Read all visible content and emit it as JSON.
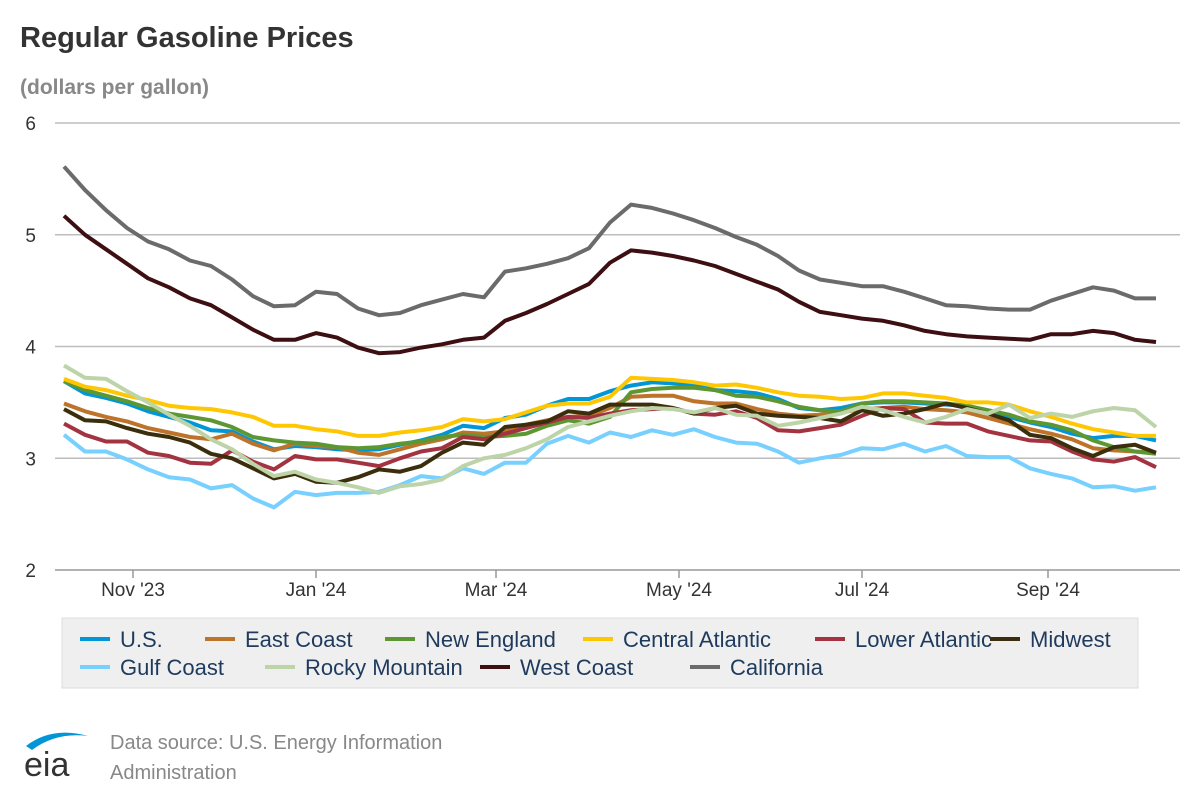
{
  "chart_data": {
    "type": "line",
    "title": "Regular Gasoline Prices",
    "subtitle": "(dollars per gallon)",
    "ylim": [
      2,
      6
    ],
    "yticks": [
      2,
      3,
      4,
      5,
      6
    ],
    "grid": true,
    "legend_position": "bottom",
    "xticks": [
      {
        "date": "2023-11-01",
        "label": "Nov '23"
      },
      {
        "date": "2024-01-01",
        "label": "Jan '24"
      },
      {
        "date": "2024-03-01",
        "label": "Mar '24"
      },
      {
        "date": "2024-05-01",
        "label": "May '24"
      },
      {
        "date": "2024-07-01",
        "label": "Jul '24"
      },
      {
        "date": "2024-09-01",
        "label": "Sep '24"
      }
    ],
    "x": [
      "2023-10-09",
      "2023-10-16",
      "2023-10-23",
      "2023-10-30",
      "2023-11-06",
      "2023-11-13",
      "2023-11-20",
      "2023-11-27",
      "2023-12-04",
      "2023-12-11",
      "2023-12-18",
      "2023-12-25",
      "2024-01-01",
      "2024-01-08",
      "2024-01-15",
      "2024-01-22",
      "2024-01-29",
      "2024-02-05",
      "2024-02-12",
      "2024-02-19",
      "2024-02-26",
      "2024-03-04",
      "2024-03-11",
      "2024-03-18",
      "2024-03-25",
      "2024-04-01",
      "2024-04-08",
      "2024-04-15",
      "2024-04-22",
      "2024-04-29",
      "2024-05-06",
      "2024-05-13",
      "2024-05-20",
      "2024-05-27",
      "2024-06-03",
      "2024-06-10",
      "2024-06-17",
      "2024-06-24",
      "2024-07-01",
      "2024-07-08",
      "2024-07-15",
      "2024-07-22",
      "2024-07-29",
      "2024-08-05",
      "2024-08-12",
      "2024-08-19",
      "2024-08-26",
      "2024-09-02",
      "2024-09-09",
      "2024-09-16",
      "2024-09-23",
      "2024-09-30",
      "2024-10-07"
    ],
    "series": [
      {
        "name": "U.S.",
        "color": "#0096d7",
        "values": [
          3.69,
          3.58,
          3.54,
          3.49,
          3.42,
          3.37,
          3.32,
          3.25,
          3.24,
          3.15,
          3.08,
          3.11,
          3.1,
          3.08,
          3.07,
          3.08,
          3.12,
          3.16,
          3.21,
          3.29,
          3.27,
          3.36,
          3.39,
          3.47,
          3.53,
          3.53,
          3.6,
          3.65,
          3.68,
          3.67,
          3.65,
          3.61,
          3.6,
          3.58,
          3.53,
          3.45,
          3.43,
          3.45,
          3.49,
          3.5,
          3.5,
          3.49,
          3.48,
          3.47,
          3.4,
          3.37,
          3.32,
          3.28,
          3.22,
          3.18,
          3.2,
          3.2,
          3.16
        ]
      },
      {
        "name": "East Coast",
        "color": "#bd732a",
        "values": [
          3.49,
          3.42,
          3.37,
          3.33,
          3.27,
          3.23,
          3.19,
          3.17,
          3.22,
          3.13,
          3.07,
          3.13,
          3.11,
          3.1,
          3.05,
          3.03,
          3.08,
          3.13,
          3.17,
          3.23,
          3.22,
          3.24,
          3.3,
          3.34,
          3.37,
          3.38,
          3.45,
          3.55,
          3.56,
          3.56,
          3.51,
          3.49,
          3.49,
          3.44,
          3.4,
          3.38,
          3.39,
          3.41,
          3.44,
          3.45,
          3.46,
          3.44,
          3.43,
          3.41,
          3.36,
          3.31,
          3.26,
          3.22,
          3.17,
          3.09,
          3.07,
          3.06,
          3.05
        ]
      },
      {
        "name": "New England",
        "color": "#5d9732",
        "values": [
          3.69,
          3.61,
          3.56,
          3.51,
          3.45,
          3.4,
          3.37,
          3.34,
          3.28,
          3.19,
          3.16,
          3.14,
          3.13,
          3.1,
          3.09,
          3.1,
          3.13,
          3.15,
          3.19,
          3.21,
          3.19,
          3.2,
          3.22,
          3.29,
          3.34,
          3.31,
          3.37,
          3.59,
          3.62,
          3.63,
          3.63,
          3.61,
          3.56,
          3.55,
          3.51,
          3.46,
          3.43,
          3.42,
          3.49,
          3.51,
          3.51,
          3.5,
          3.49,
          3.47,
          3.43,
          3.39,
          3.33,
          3.3,
          3.25,
          3.16,
          3.1,
          3.06,
          3.04
        ]
      },
      {
        "name": "Central Atlantic",
        "color": "#ffc702",
        "values": [
          3.71,
          3.64,
          3.61,
          3.56,
          3.52,
          3.47,
          3.45,
          3.44,
          3.41,
          3.37,
          3.29,
          3.29,
          3.26,
          3.24,
          3.2,
          3.2,
          3.23,
          3.25,
          3.28,
          3.35,
          3.33,
          3.35,
          3.41,
          3.47,
          3.49,
          3.49,
          3.55,
          3.72,
          3.71,
          3.7,
          3.68,
          3.65,
          3.66,
          3.63,
          3.59,
          3.56,
          3.55,
          3.53,
          3.54,
          3.58,
          3.58,
          3.56,
          3.54,
          3.5,
          3.5,
          3.48,
          3.42,
          3.37,
          3.31,
          3.26,
          3.23,
          3.2,
          3.2
        ]
      },
      {
        "name": "Lower Atlantic",
        "color": "#a33340",
        "values": [
          3.31,
          3.21,
          3.15,
          3.15,
          3.05,
          3.02,
          2.96,
          2.95,
          3.07,
          2.97,
          2.9,
          3.02,
          2.99,
          2.99,
          2.96,
          2.93,
          3.0,
          3.06,
          3.09,
          3.19,
          3.17,
          3.22,
          3.27,
          3.32,
          3.37,
          3.36,
          3.4,
          3.43,
          3.44,
          3.45,
          3.4,
          3.39,
          3.42,
          3.36,
          3.25,
          3.24,
          3.27,
          3.3,
          3.38,
          3.45,
          3.44,
          3.32,
          3.31,
          3.31,
          3.24,
          3.2,
          3.16,
          3.15,
          3.06,
          2.99,
          2.97,
          3.01,
          2.92
        ]
      },
      {
        "name": "Midwest",
        "color": "#3b2e0c",
        "values": [
          3.44,
          3.34,
          3.33,
          3.27,
          3.22,
          3.19,
          3.14,
          3.04,
          3.0,
          2.91,
          2.82,
          2.86,
          2.79,
          2.78,
          2.83,
          2.9,
          2.88,
          2.93,
          3.05,
          3.14,
          3.12,
          3.28,
          3.3,
          3.33,
          3.42,
          3.4,
          3.48,
          3.48,
          3.48,
          3.45,
          3.4,
          3.45,
          3.47,
          3.4,
          3.38,
          3.37,
          3.36,
          3.33,
          3.43,
          3.38,
          3.4,
          3.44,
          3.49,
          3.45,
          3.4,
          3.34,
          3.21,
          3.18,
          3.09,
          3.02,
          3.1,
          3.12,
          3.05
        ]
      },
      {
        "name": "Gulf Coast",
        "color": "#78d0ff",
        "values": [
          3.21,
          3.06,
          3.06,
          2.99,
          2.9,
          2.83,
          2.81,
          2.73,
          2.76,
          2.64,
          2.56,
          2.7,
          2.67,
          2.69,
          2.69,
          2.7,
          2.76,
          2.84,
          2.82,
          2.91,
          2.86,
          2.96,
          2.96,
          3.13,
          3.2,
          3.14,
          3.23,
          3.19,
          3.25,
          3.21,
          3.26,
          3.19,
          3.14,
          3.13,
          3.06,
          2.96,
          3.0,
          3.03,
          3.09,
          3.08,
          3.13,
          3.06,
          3.11,
          3.02,
          3.01,
          3.01,
          2.91,
          2.86,
          2.82,
          2.74,
          2.75,
          2.71,
          2.74
        ]
      },
      {
        "name": "Rocky Mountain",
        "color": "#bdd4a9",
        "values": [
          3.83,
          3.72,
          3.71,
          3.6,
          3.5,
          3.39,
          3.29,
          3.17,
          3.08,
          2.95,
          2.84,
          2.88,
          2.81,
          2.78,
          2.74,
          2.69,
          2.75,
          2.77,
          2.81,
          2.93,
          3.0,
          3.03,
          3.09,
          3.17,
          3.28,
          3.33,
          3.38,
          3.42,
          3.45,
          3.44,
          3.41,
          3.45,
          3.39,
          3.38,
          3.29,
          3.32,
          3.36,
          3.4,
          3.46,
          3.43,
          3.37,
          3.32,
          3.37,
          3.44,
          3.4,
          3.48,
          3.36,
          3.4,
          3.37,
          3.42,
          3.45,
          3.43,
          3.28
        ]
      },
      {
        "name": "West Coast",
        "color": "#3d0f12",
        "values": [
          5.17,
          5.0,
          4.87,
          4.74,
          4.61,
          4.53,
          4.43,
          4.37,
          4.26,
          4.15,
          4.06,
          4.06,
          4.12,
          4.08,
          3.99,
          3.94,
          3.95,
          3.99,
          4.02,
          4.06,
          4.08,
          4.23,
          4.3,
          4.38,
          4.47,
          4.56,
          4.75,
          4.86,
          4.84,
          4.81,
          4.77,
          4.72,
          4.65,
          4.58,
          4.51,
          4.4,
          4.31,
          4.28,
          4.25,
          4.23,
          4.19,
          4.14,
          4.11,
          4.09,
          4.08,
          4.07,
          4.06,
          4.11,
          4.11,
          4.14,
          4.12,
          4.06,
          4.04
        ]
      },
      {
        "name": "California",
        "color": "#6b6b6b",
        "values": [
          5.61,
          5.4,
          5.22,
          5.06,
          4.94,
          4.87,
          4.77,
          4.72,
          4.6,
          4.45,
          4.36,
          4.37,
          4.49,
          4.47,
          4.34,
          4.28,
          4.3,
          4.37,
          4.42,
          4.47,
          4.44,
          4.67,
          4.7,
          4.74,
          4.79,
          4.88,
          5.11,
          5.27,
          5.24,
          5.19,
          5.13,
          5.06,
          4.98,
          4.91,
          4.81,
          4.68,
          4.6,
          4.57,
          4.54,
          4.54,
          4.49,
          4.43,
          4.37,
          4.36,
          4.34,
          4.33,
          4.33,
          4.41,
          4.47,
          4.53,
          4.5,
          4.43,
          4.43
        ]
      }
    ]
  },
  "footer": {
    "source": "Data source: U.S. Energy Information Administration",
    "logo_text": "eia"
  }
}
